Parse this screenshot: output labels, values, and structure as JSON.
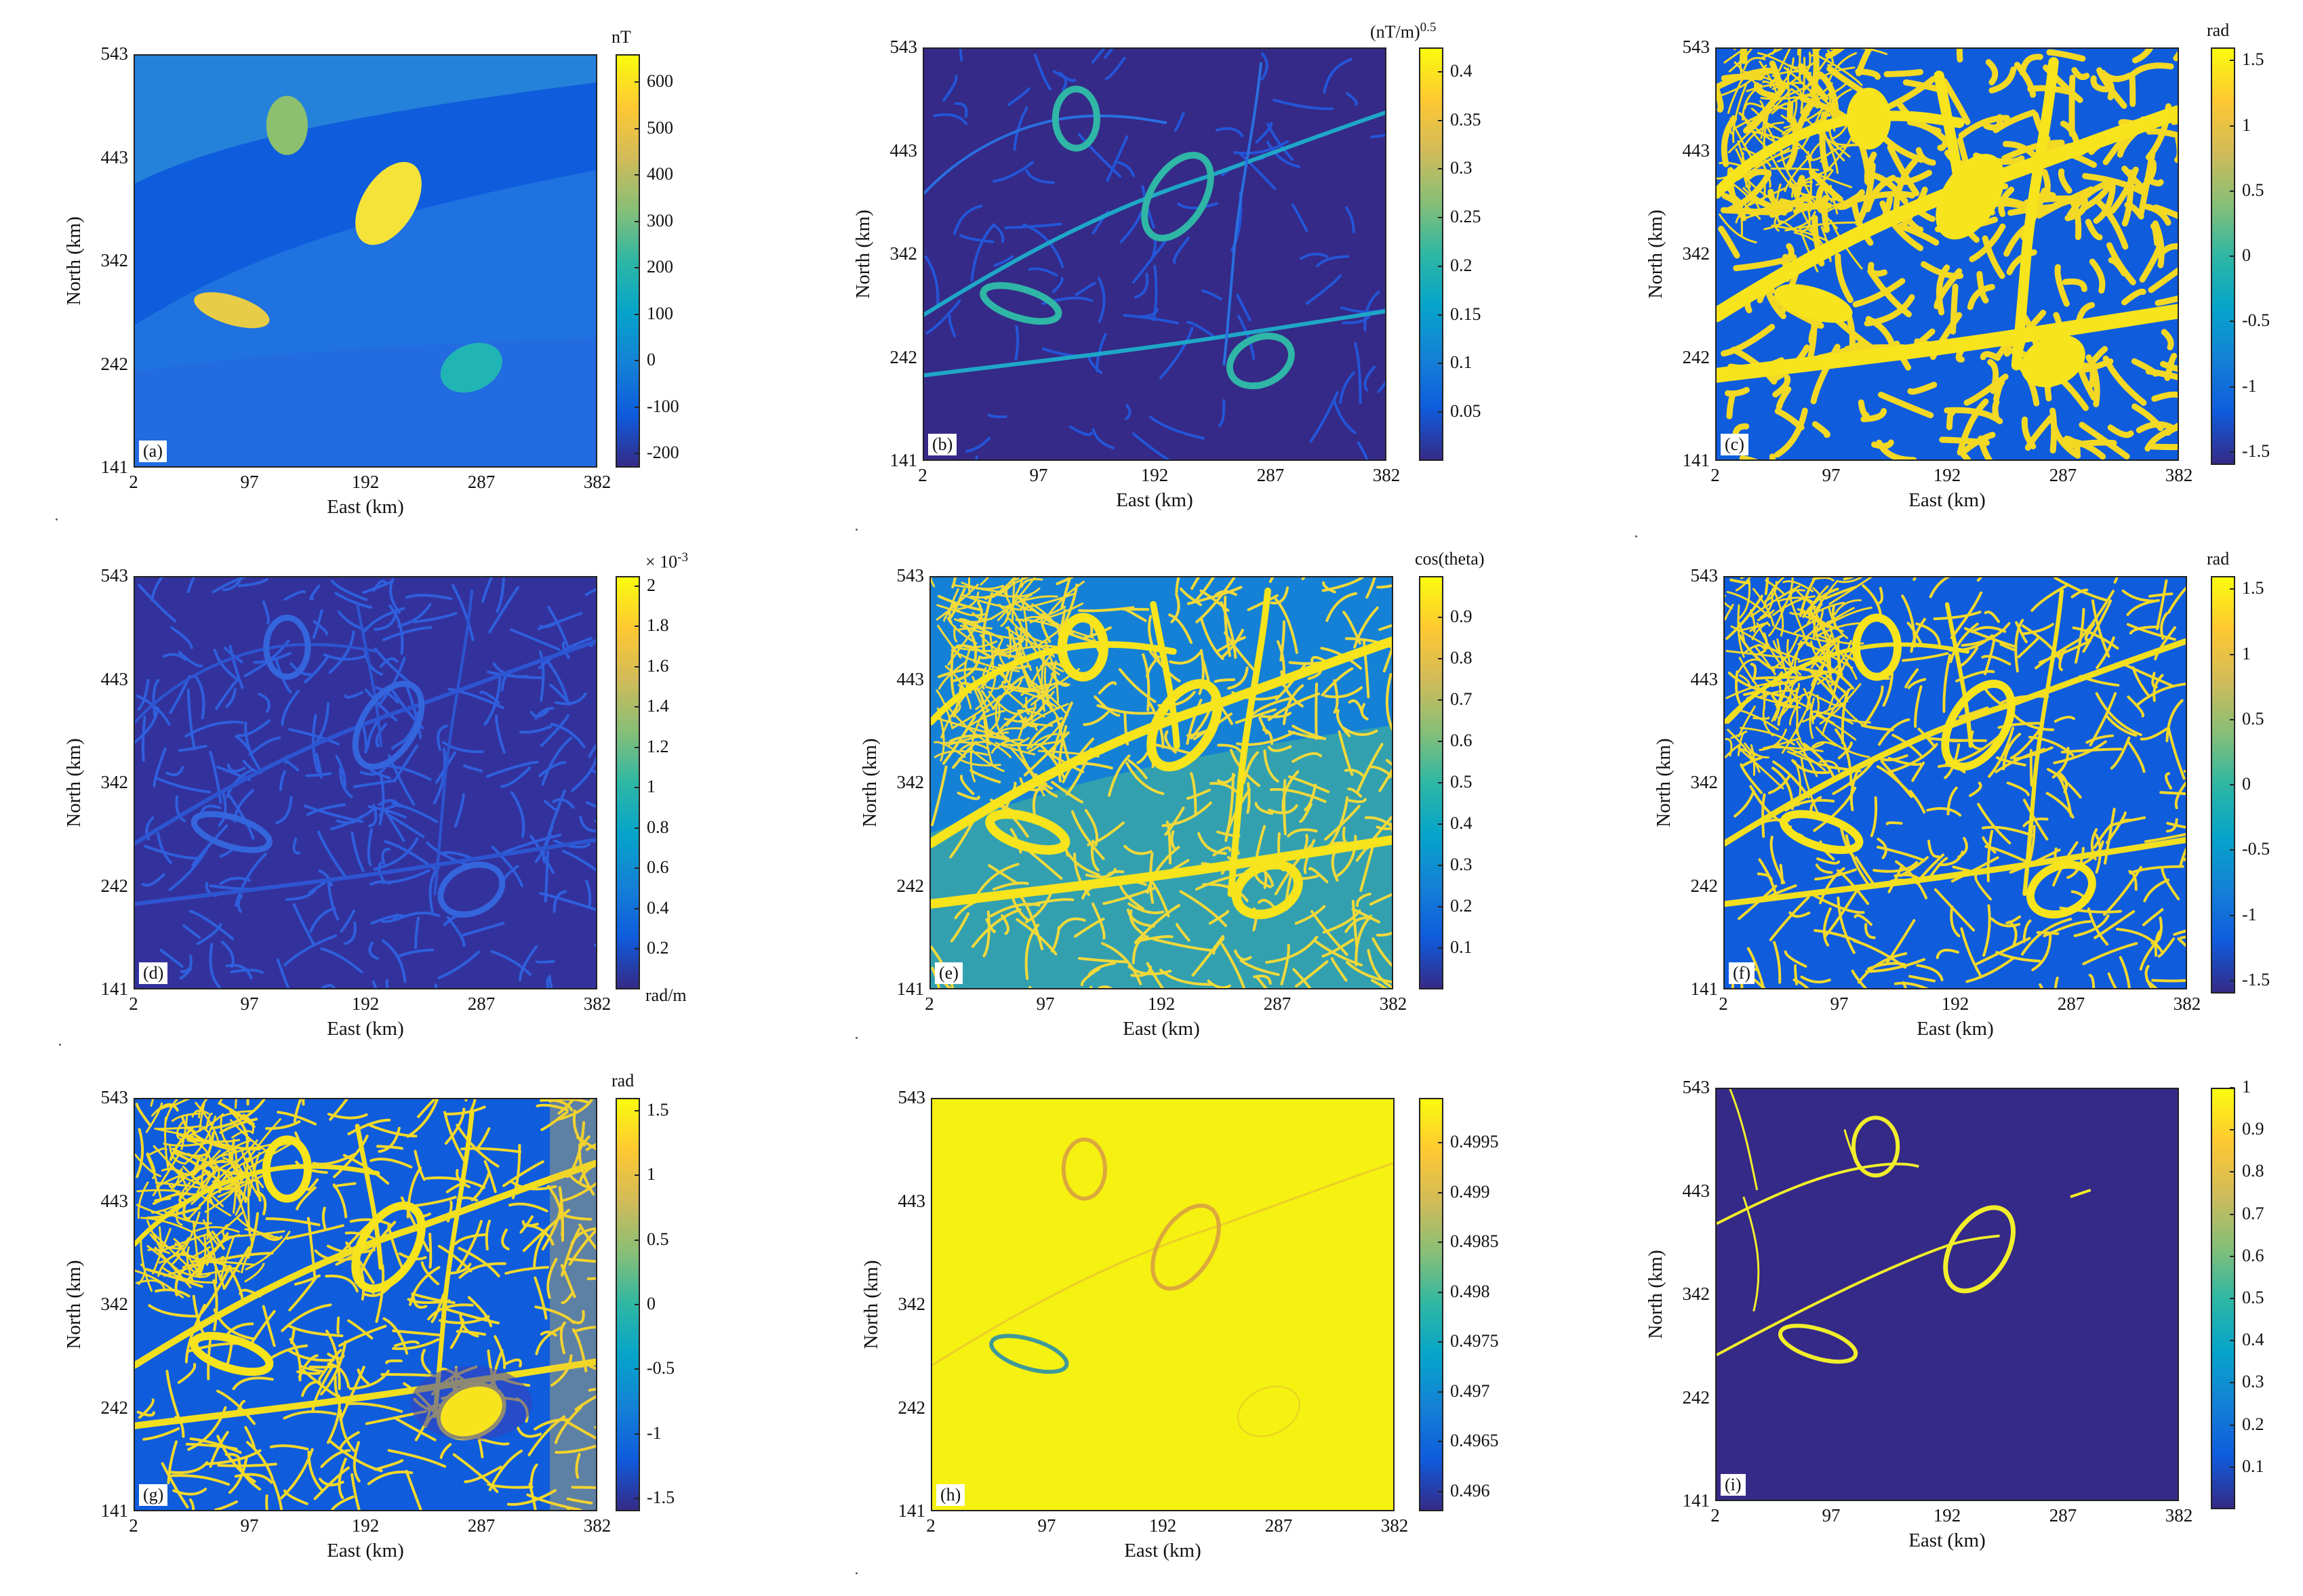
{
  "colors": {
    "parula": [
      "#352a87",
      "#0f5cdd",
      "#1481d6",
      "#06a4ca",
      "#2eb7a4",
      "#87bf77",
      "#d1bb59",
      "#fec832",
      "#f9fb0e"
    ]
  },
  "chart_data": [
    {
      "type": "heatmap",
      "id": "a",
      "panel_label": "(a)",
      "xlabel": "East (km)",
      "ylabel": "North (km)",
      "x_ticks": [
        "2",
        "97",
        "192",
        "287",
        "382"
      ],
      "y_ticks": [
        "543",
        "443",
        "342",
        "242",
        "141"
      ],
      "xlim": [
        2,
        382
      ],
      "ylim": [
        141,
        543
      ],
      "colorbar": {
        "unit": "nT",
        "ticks": [
          "600",
          "500",
          "400",
          "300",
          "200",
          "100",
          "0",
          "-100",
          "-200"
        ],
        "tick_values": [
          600,
          500,
          400,
          300,
          200,
          100,
          0,
          -100,
          -200
        ],
        "range": [
          -230,
          660
        ]
      }
    },
    {
      "type": "heatmap",
      "id": "b",
      "panel_label": "(b)",
      "xlabel": "East (km)",
      "ylabel": "North (km)",
      "x_ticks": [
        "2",
        "97",
        "192",
        "287",
        "382"
      ],
      "y_ticks": [
        "543",
        "443",
        "342",
        "242",
        "141"
      ],
      "xlim": [
        2,
        382
      ],
      "ylim": [
        141,
        543
      ],
      "colorbar": {
        "unit": "(nT/m)",
        "unit_exponent": "0.5",
        "ticks": [
          "0.4",
          "0.35",
          "0.3",
          "0.25",
          "0.2",
          "0.15",
          "0.1",
          "0.05"
        ],
        "tick_values": [
          0.4,
          0.35,
          0.3,
          0.25,
          0.2,
          0.15,
          0.1,
          0.05
        ],
        "range": [
          0,
          0.425
        ]
      }
    },
    {
      "type": "heatmap",
      "id": "c",
      "panel_label": "(c)",
      "xlabel": "East (km)",
      "ylabel": "North (km)",
      "x_ticks": [
        "2",
        "97",
        "192",
        "287",
        "382"
      ],
      "y_ticks": [
        "543",
        "443",
        "342",
        "242",
        "141"
      ],
      "xlim": [
        2,
        382
      ],
      "ylim": [
        141,
        543
      ],
      "colorbar": {
        "unit": "rad",
        "ticks": [
          "1.5",
          "1",
          "0.5",
          "0",
          "-0.5",
          "-1",
          "-1.5"
        ],
        "tick_values": [
          1.5,
          1,
          0.5,
          0,
          -0.5,
          -1,
          -1.5
        ],
        "range": [
          -1.6,
          1.6
        ]
      }
    },
    {
      "type": "heatmap",
      "id": "d",
      "panel_label": "(d)",
      "xlabel": "East (km)",
      "ylabel": "North (km)",
      "x_ticks": [
        "2",
        "97",
        "192",
        "287",
        "382"
      ],
      "y_ticks": [
        "543",
        "443",
        "342",
        "242",
        "141"
      ],
      "xlim": [
        2,
        382
      ],
      "ylim": [
        141,
        543
      ],
      "colorbar": {
        "unit": "rad/m",
        "multiplier": "× 10",
        "multiplier_exponent": "-3",
        "ticks": [
          "2",
          "1.8",
          "1.6",
          "1.4",
          "1.2",
          "1",
          "0.8",
          "0.6",
          "0.4",
          "0.2"
        ],
        "tick_values": [
          2,
          1.8,
          1.6,
          1.4,
          1.2,
          1,
          0.8,
          0.6,
          0.4,
          0.2
        ],
        "range": [
          0,
          2.05
        ]
      }
    },
    {
      "type": "heatmap",
      "id": "e",
      "panel_label": "(e)",
      "xlabel": "East (km)",
      "ylabel": "North (km)",
      "x_ticks": [
        "2",
        "97",
        "192",
        "287",
        "382"
      ],
      "y_ticks": [
        "543",
        "443",
        "342",
        "242",
        "141"
      ],
      "xlim": [
        2,
        382
      ],
      "ylim": [
        141,
        543
      ],
      "colorbar": {
        "unit": "cos(theta)",
        "ticks": [
          "0.9",
          "0.8",
          "0.7",
          "0.6",
          "0.5",
          "0.4",
          "0.3",
          "0.2",
          "0.1"
        ],
        "tick_values": [
          0.9,
          0.8,
          0.7,
          0.6,
          0.5,
          0.4,
          0.3,
          0.2,
          0.1
        ],
        "range": [
          0,
          1
        ]
      }
    },
    {
      "type": "heatmap",
      "id": "f",
      "panel_label": "(f)",
      "xlabel": "East (km)",
      "ylabel": "North (km)",
      "x_ticks": [
        "2",
        "97",
        "192",
        "287",
        "382"
      ],
      "y_ticks": [
        "543",
        "443",
        "342",
        "242",
        "141"
      ],
      "xlim": [
        2,
        382
      ],
      "ylim": [
        141,
        543
      ],
      "colorbar": {
        "unit": "rad",
        "ticks": [
          "1.5",
          "1",
          "0.5",
          "0",
          "-0.5",
          "-1",
          "-1.5"
        ],
        "tick_values": [
          1.5,
          1,
          0.5,
          0,
          -0.5,
          -1,
          -1.5
        ],
        "range": [
          -1.6,
          1.6
        ]
      }
    },
    {
      "type": "heatmap",
      "id": "g",
      "panel_label": "(g)",
      "xlabel": "East (km)",
      "ylabel": "North (km)",
      "x_ticks": [
        "2",
        "97",
        "192",
        "287",
        "382"
      ],
      "y_ticks": [
        "543",
        "443",
        "342",
        "242",
        "141"
      ],
      "xlim": [
        2,
        382
      ],
      "ylim": [
        141,
        543
      ],
      "colorbar": {
        "unit": "rad",
        "ticks": [
          "1.5",
          "1",
          "0.5",
          "0",
          "-0.5",
          "-1",
          "-1.5"
        ],
        "tick_values": [
          1.5,
          1,
          0.5,
          0,
          -0.5,
          -1,
          -1.5
        ],
        "range": [
          -1.6,
          1.6
        ]
      }
    },
    {
      "type": "heatmap",
      "id": "h",
      "panel_label": "(h)",
      "xlabel": "East (km)",
      "ylabel": "North (km)",
      "x_ticks": [
        "2",
        "97",
        "192",
        "287",
        "382"
      ],
      "y_ticks": [
        "543",
        "443",
        "342",
        "242",
        "141"
      ],
      "xlim": [
        2,
        382
      ],
      "ylim": [
        141,
        543
      ],
      "colorbar": {
        "unit": "",
        "ticks": [
          "0.4995",
          "0.499",
          "0.4985",
          "0.498",
          "0.4975",
          "0.497",
          "0.4965",
          "0.496"
        ],
        "tick_values": [
          0.4995,
          0.499,
          0.4985,
          0.498,
          0.4975,
          0.497,
          0.4965,
          0.496
        ],
        "range": [
          0.4958,
          0.49995
        ]
      }
    },
    {
      "type": "heatmap",
      "id": "i",
      "panel_label": "(i)",
      "xlabel": "East (km)",
      "ylabel": "North (km)",
      "x_ticks": [
        "2",
        "97",
        "192",
        "287",
        "382"
      ],
      "y_ticks": [
        "543",
        "443",
        "342",
        "242",
        "141"
      ],
      "xlim": [
        2,
        382
      ],
      "ylim": [
        141,
        543
      ],
      "colorbar": {
        "unit": "",
        "ticks": [
          "1",
          "0.9",
          "0.8",
          "0.7",
          "0.6",
          "0.5",
          "0.4",
          "0.3",
          "0.2",
          "0.1"
        ],
        "tick_values": [
          1,
          0.9,
          0.8,
          0.7,
          0.6,
          0.5,
          0.4,
          0.3,
          0.2,
          0.1
        ],
        "range": [
          0,
          1
        ]
      }
    }
  ]
}
